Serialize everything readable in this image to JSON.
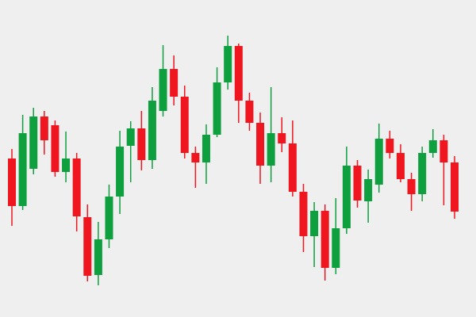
{
  "chart_data": {
    "type": "candlestick",
    "ylim": [
      0,
      400
    ],
    "up_color": "#0e9f3e",
    "down_color": "#ef1620",
    "open": [
      200,
      140,
      187,
      253,
      242,
      183,
      200,
      126,
      53,
      98,
      152,
      216,
      238,
      198,
      260,
      313,
      278,
      207,
      195,
      230,
      296,
      342,
      273,
      245,
      191,
      232,
      219,
      158,
      102,
      134,
      62,
      112,
      191,
      146,
      167,
      225,
      207,
      174,
      155,
      207,
      223,
      195
    ],
    "high": [
      212,
      255,
      264,
      260,
      248,
      234,
      207,
      142,
      120,
      167,
      235,
      247,
      260,
      290,
      343,
      330,
      292,
      215,
      243,
      315,
      355,
      345,
      283,
      258,
      290,
      252,
      248,
      168,
      145,
      142,
      150,
      215,
      198,
      186,
      244,
      235,
      218,
      182,
      215,
      237,
      230,
      203
    ],
    "low": [
      115,
      135,
      180,
      205,
      177,
      170,
      108,
      45,
      40,
      87,
      130,
      170,
      185,
      187,
      253,
      267,
      200,
      163,
      168,
      227,
      287,
      245,
      235,
      168,
      170,
      208,
      152,
      82,
      63,
      46,
      54,
      105,
      138,
      119,
      157,
      200,
      170,
      134,
      146,
      201,
      141,
      124
    ],
    "close": [
      140,
      232,
      253,
      223,
      183,
      200,
      127,
      52,
      98,
      152,
      215,
      238,
      198,
      273,
      313,
      278,
      207,
      195,
      230,
      296,
      342,
      273,
      245,
      191,
      232,
      219,
      158,
      102,
      134,
      62,
      112,
      191,
      147,
      174,
      225,
      207,
      174,
      155,
      207,
      223,
      195,
      133
    ]
  }
}
